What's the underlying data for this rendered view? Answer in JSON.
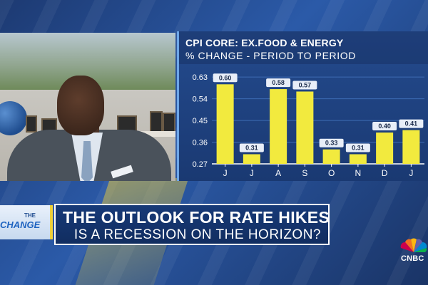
{
  "chart_data": {
    "type": "bar",
    "title": "CPI CORE: EX.FOOD & ENERGY",
    "subtitle": "% CHANGE - PERIOD TO PERIOD",
    "categories": [
      "J",
      "J",
      "A",
      "S",
      "O",
      "N",
      "D",
      "J"
    ],
    "values": [
      0.6,
      0.31,
      0.58,
      0.57,
      0.33,
      0.31,
      0.4,
      0.41
    ],
    "data_labels": [
      "0.60",
      "0.31",
      "0.58",
      "0.57",
      "0.33",
      "0.31",
      "0.40",
      "0.41"
    ],
    "y_ticks": [
      "0.63",
      "0.54",
      "0.45",
      "0.36",
      "0.27"
    ],
    "y_tick_values": [
      0.63,
      0.54,
      0.45,
      0.36,
      0.27
    ],
    "ylim": [
      0.27,
      0.66
    ],
    "grid": true,
    "legend": "none",
    "colors": {
      "bar": "#f2ea3e",
      "grid": "#3d6bb3",
      "axis": "#ffffff"
    }
  },
  "lower_third": {
    "show_logo_top": "THE",
    "show_logo_bottom": "CHANGE",
    "headline": "THE OUTLOOK FOR RATE HIKES",
    "subheadline": "IS A RECESSION ON THE HORIZON?"
  },
  "network": {
    "logo_text": "CNBC",
    "logo_icon": "peacock-icon"
  }
}
